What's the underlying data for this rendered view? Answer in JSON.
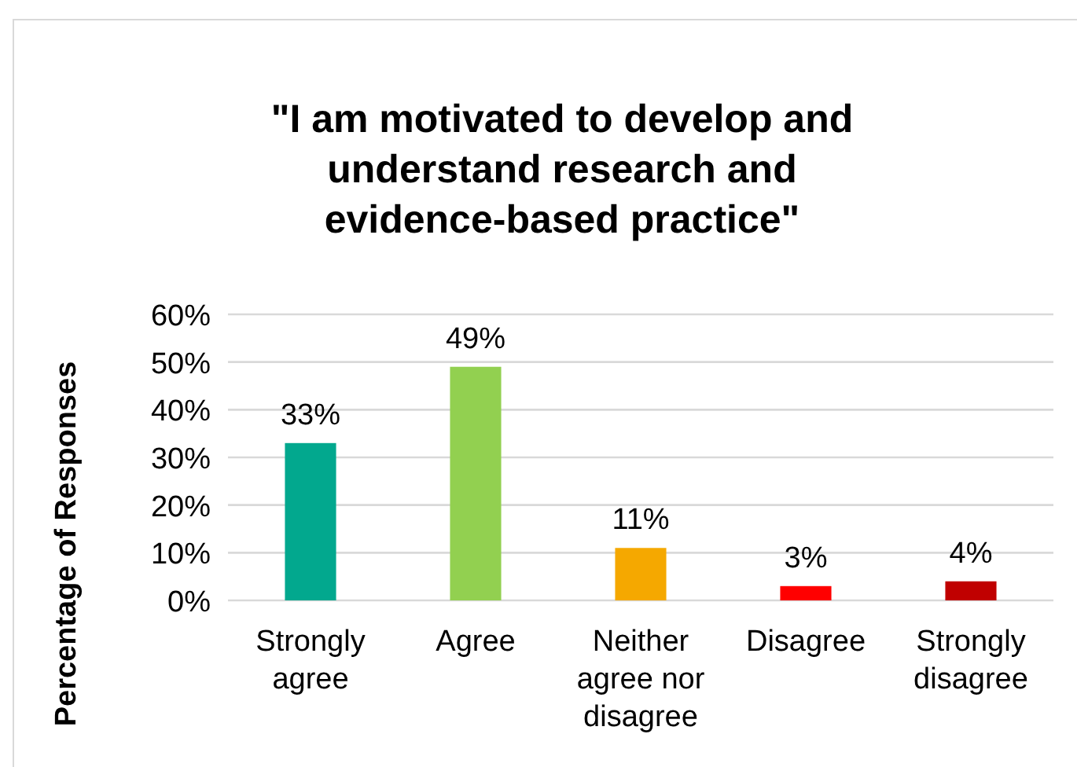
{
  "chart_data": {
    "type": "bar",
    "title": "\"I am motivated to develop and understand research and evidence-based practice\"",
    "ylabel": "Percentage of Responses",
    "categories": [
      "Strongly agree",
      "Agree",
      "Neither agree nor disagree",
      "Disagree",
      "Strongly disagree"
    ],
    "values": [
      33,
      49,
      11,
      3,
      4
    ],
    "colors": [
      "#02a88e",
      "#92d050",
      "#f5a800",
      "#ff0000",
      "#c00000"
    ],
    "value_labels": [
      "33%",
      "49%",
      "11%",
      "3%",
      "4%"
    ],
    "ylim": [
      0,
      60
    ],
    "yticks": [
      {
        "value": 0,
        "label": "0%"
      },
      {
        "value": 10,
        "label": "10%"
      },
      {
        "value": 20,
        "label": "20%"
      },
      {
        "value": 30,
        "label": "30%"
      },
      {
        "value": 40,
        "label": "40%"
      },
      {
        "value": 50,
        "label": "50%"
      },
      {
        "value": 60,
        "label": "60%"
      }
    ],
    "grid": "y"
  }
}
